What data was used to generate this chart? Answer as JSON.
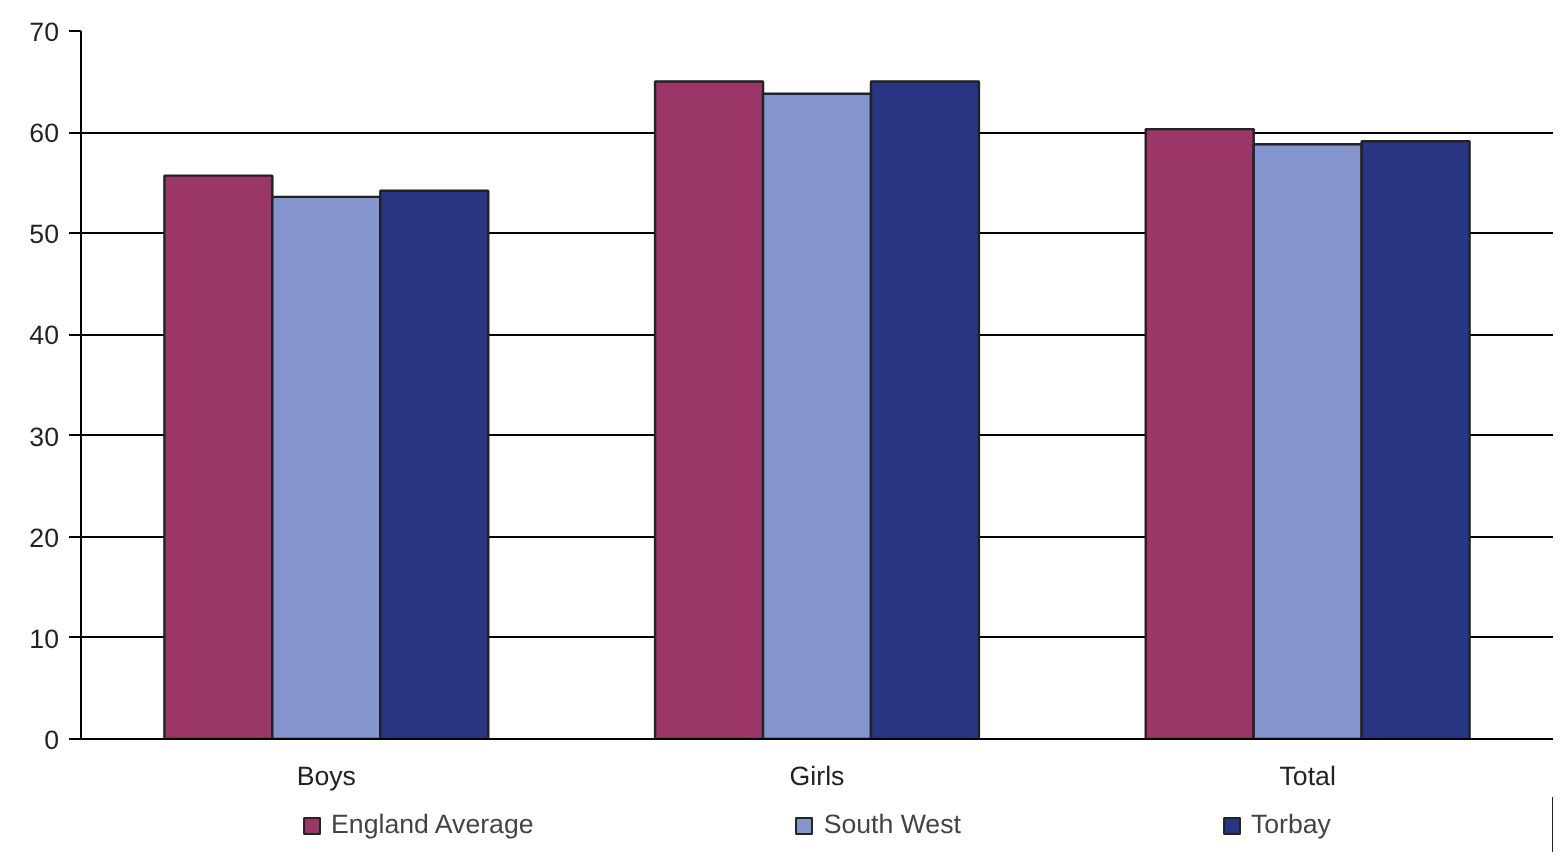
{
  "chart_data": {
    "type": "bar",
    "categories": [
      "Boys",
      "Girls",
      "Total"
    ],
    "series": [
      {
        "name": "England Average",
        "color": "#9b3768",
        "values": [
          55.7,
          65.0,
          60.3
        ]
      },
      {
        "name": "South West",
        "color": "#8495cd",
        "values": [
          53.6,
          63.8,
          58.8
        ]
      },
      {
        "name": "Torbay",
        "color": "#283583",
        "values": [
          54.2,
          65.0,
          59.1
        ]
      }
    ],
    "ylim": [
      0,
      70
    ],
    "yticks": [
      0,
      10,
      20,
      30,
      40,
      50,
      60,
      70
    ],
    "grid": "y",
    "legend": "bottom"
  }
}
